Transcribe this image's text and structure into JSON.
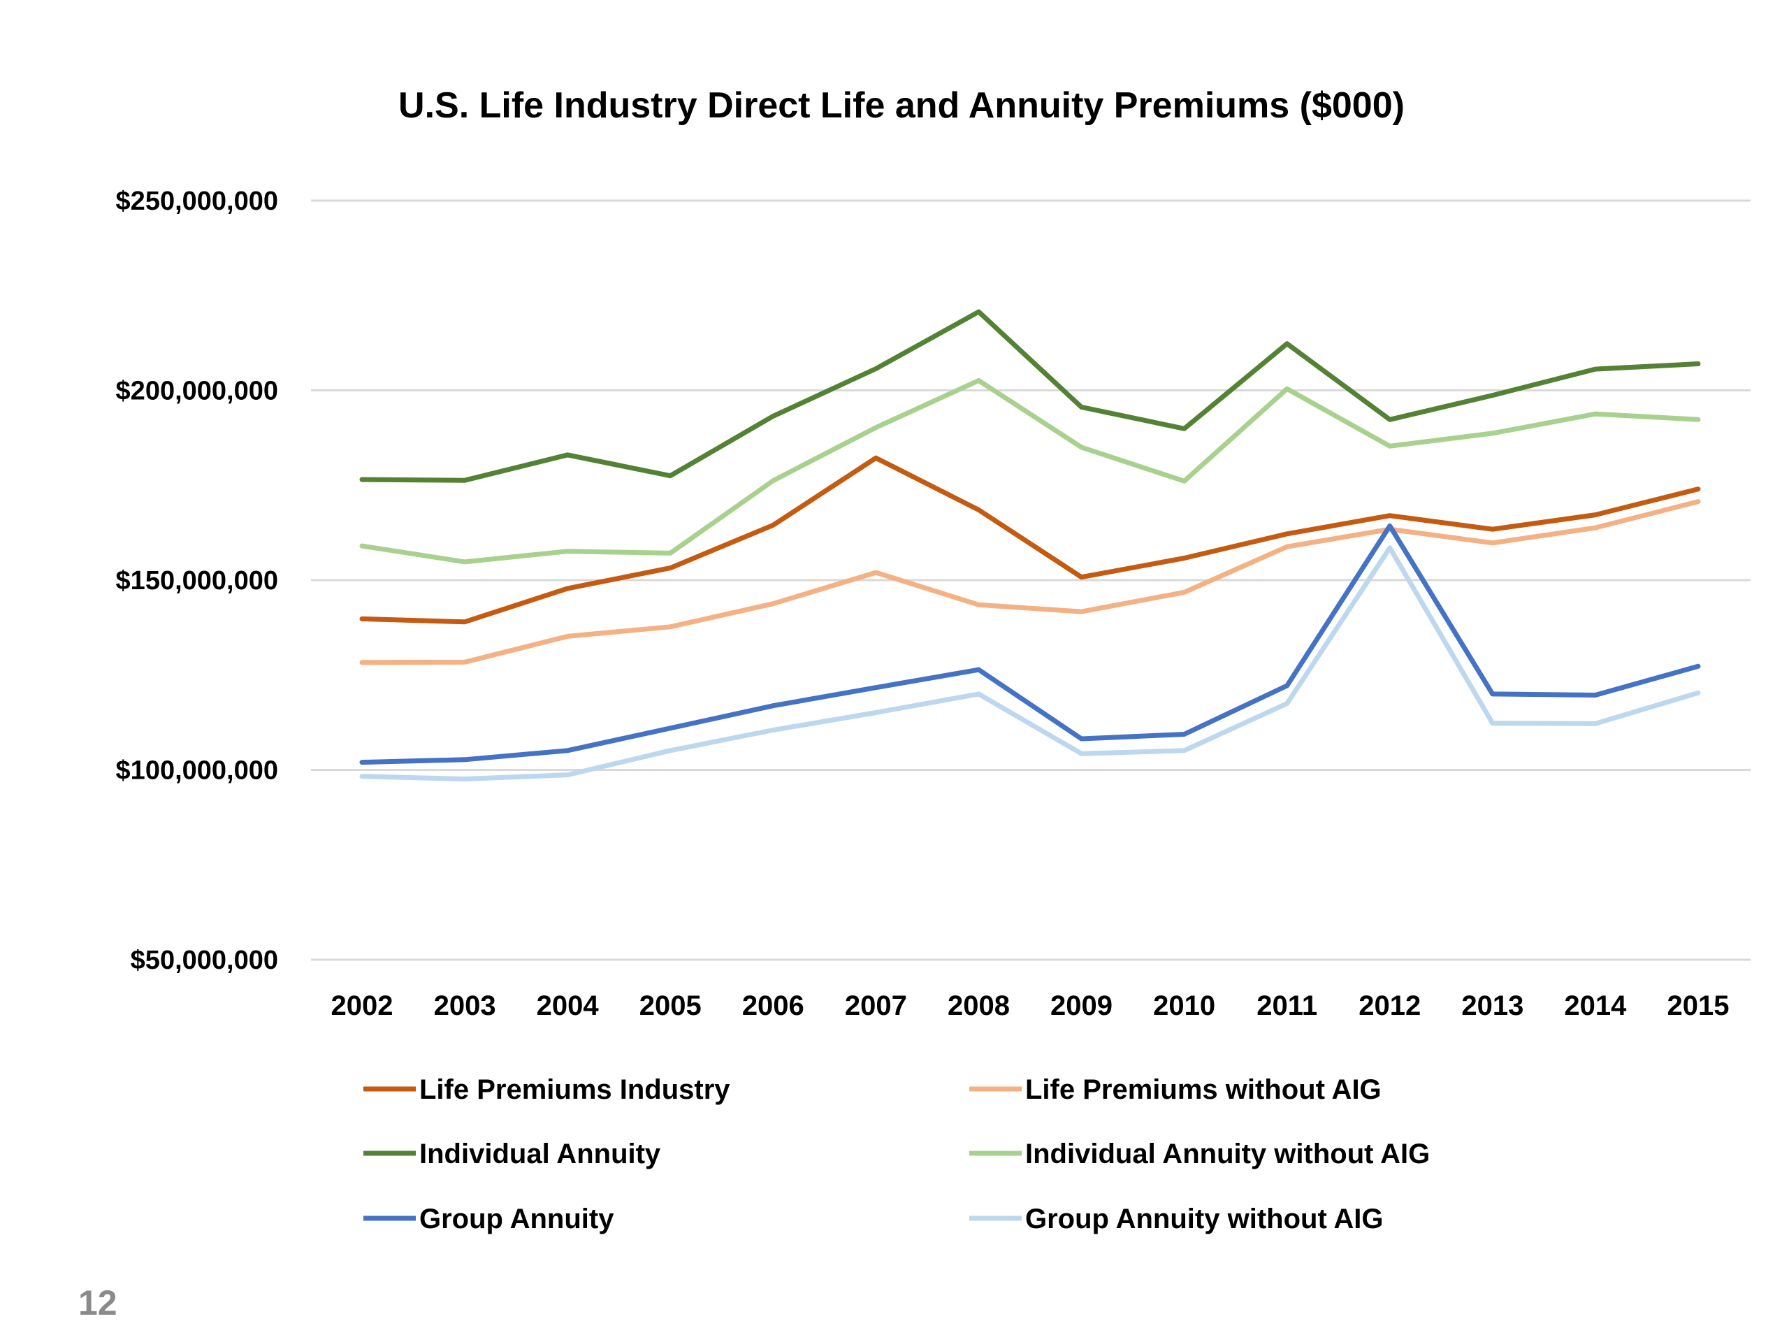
{
  "page_number": "12",
  "chart_data": {
    "type": "line",
    "title": "U.S. Life Industry Direct Life and Annuity Premiums ($000)",
    "xlabel": "",
    "ylabel": "",
    "x": [
      "2002",
      "2003",
      "2004",
      "2005",
      "2006",
      "2007",
      "2008",
      "2009",
      "2010",
      "2011",
      "2012",
      "2013",
      "2014",
      "2015"
    ],
    "ylim": [
      50000000,
      250000000
    ],
    "yticks": [
      50000000,
      100000000,
      150000000,
      200000000,
      250000000
    ],
    "ytick_labels": [
      "$50,000,000",
      "$100,000,000",
      "$150,000,000",
      "$200,000,000",
      "$250,000,000"
    ],
    "grid": true,
    "legend_position": "bottom",
    "series": [
      {
        "name": "Life Premiums Industry",
        "color": "#c55a11",
        "values": [
          139800000,
          139000000,
          147800000,
          153200000,
          164500000,
          182200000,
          168500000,
          150800000,
          155800000,
          162200000,
          167000000,
          163400000,
          167200000,
          174000000
        ]
      },
      {
        "name": "Life Premiums without AIG",
        "color": "#f4b183",
        "values": [
          128300000,
          128400000,
          135200000,
          137700000,
          143800000,
          152000000,
          143500000,
          141700000,
          146800000,
          158800000,
          163400000,
          159800000,
          163800000,
          170700000
        ]
      },
      {
        "name": "Individual Annuity",
        "color": "#548235",
        "values": [
          176500000,
          176300000,
          183000000,
          177500000,
          193200000,
          205700000,
          220700000,
          195600000,
          189900000,
          212300000,
          192300000,
          198700000,
          205600000,
          207000000
        ]
      },
      {
        "name": "Individual Annuity without AIG",
        "color": "#a9d18e",
        "values": [
          159000000,
          154800000,
          157600000,
          157100000,
          176200000,
          190200000,
          202600000,
          185000000,
          176100000,
          200400000,
          185300000,
          188700000,
          193800000,
          192300000
        ]
      },
      {
        "name": "Group Annuity",
        "color": "#4472c4",
        "values": [
          102000000,
          102700000,
          105100000,
          111000000,
          116900000,
          121700000,
          126400000,
          108200000,
          109400000,
          122200000,
          164300000,
          120000000,
          119700000,
          127300000
        ]
      },
      {
        "name": "Group Annuity without AIG",
        "color": "#bdd7ee",
        "values": [
          98300000,
          97600000,
          98700000,
          105100000,
          110500000,
          115100000,
          120000000,
          104300000,
          105100000,
          117500000,
          158500000,
          112300000,
          112200000,
          120300000
        ]
      }
    ]
  }
}
